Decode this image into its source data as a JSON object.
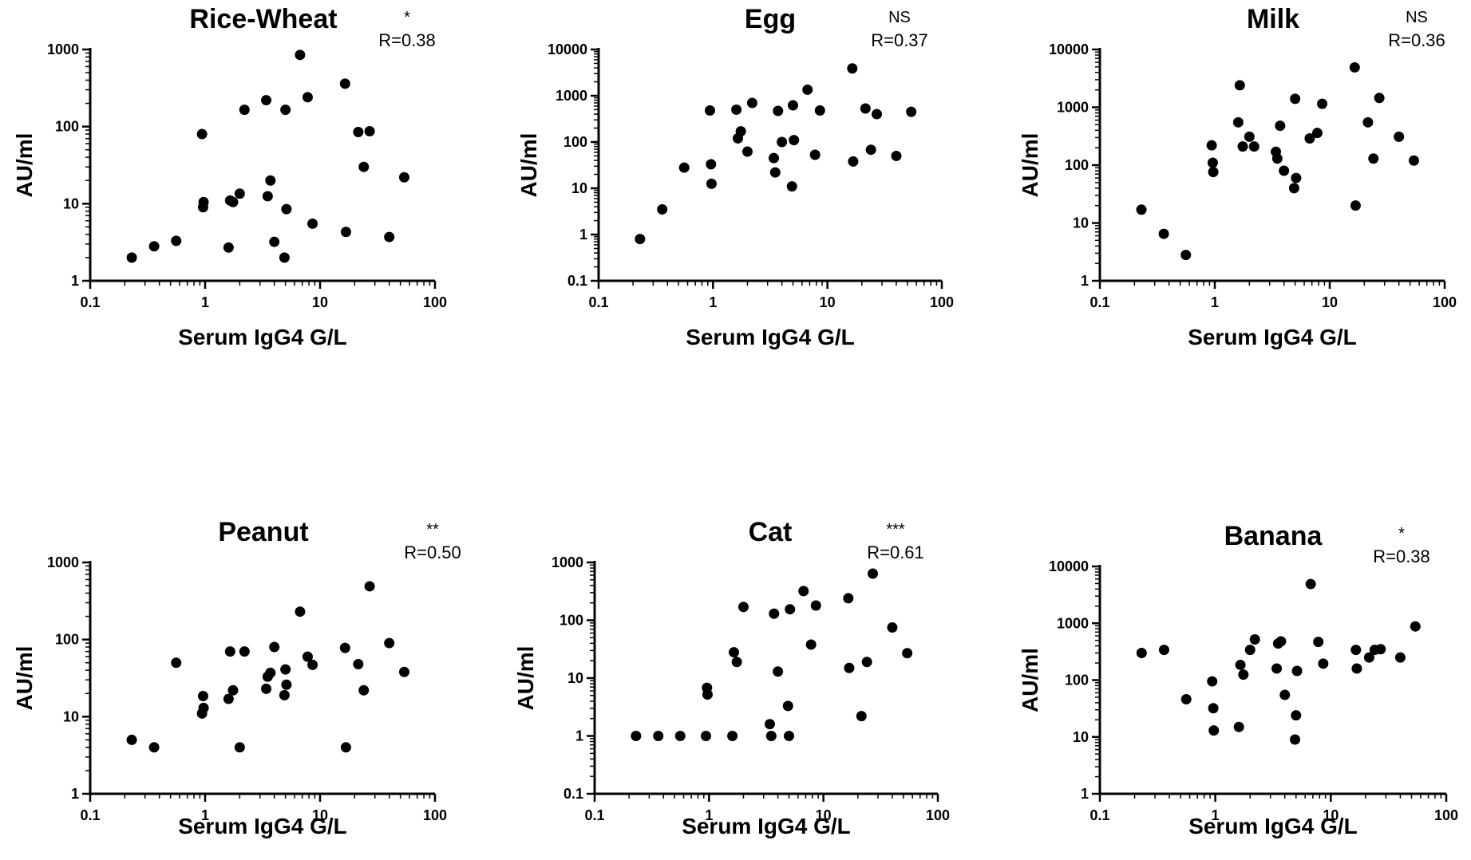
{
  "chart_data": [
    {
      "type": "scatter",
      "title": "Rice-Wheat",
      "significance": "*",
      "correlation": "R=0.38",
      "xlabel": "Serum IgG4 G/L",
      "ylabel": "AU/ml",
      "x_scale": "log",
      "y_scale": "log",
      "xlim": [
        0.1,
        100
      ],
      "ylim": [
        1,
        1000
      ],
      "x_ticks": [
        "0.1",
        "1",
        "10",
        "100"
      ],
      "y_ticks": [
        "1",
        "10",
        "100",
        "1000"
      ],
      "grid": false,
      "points": [
        {
          "x": 0.23,
          "y": 2
        },
        {
          "x": 0.36,
          "y": 2.8
        },
        {
          "x": 0.56,
          "y": 3.3
        },
        {
          "x": 0.94,
          "y": 80
        },
        {
          "x": 0.96,
          "y": 9
        },
        {
          "x": 0.97,
          "y": 10.5
        },
        {
          "x": 1.6,
          "y": 2.7
        },
        {
          "x": 1.65,
          "y": 11
        },
        {
          "x": 1.75,
          "y": 10.5
        },
        {
          "x": 2.0,
          "y": 13.5
        },
        {
          "x": 2.2,
          "y": 165
        },
        {
          "x": 3.4,
          "y": 220
        },
        {
          "x": 3.5,
          "y": 12.5
        },
        {
          "x": 3.7,
          "y": 20
        },
        {
          "x": 4.0,
          "y": 3.2
        },
        {
          "x": 4.9,
          "y": 2
        },
        {
          "x": 5.0,
          "y": 165
        },
        {
          "x": 5.1,
          "y": 8.5
        },
        {
          "x": 6.7,
          "y": 850
        },
        {
          "x": 7.8,
          "y": 240
        },
        {
          "x": 8.6,
          "y": 5.5
        },
        {
          "x": 16.5,
          "y": 360
        },
        {
          "x": 16.8,
          "y": 4.3
        },
        {
          "x": 21.5,
          "y": 85
        },
        {
          "x": 24,
          "y": 30
        },
        {
          "x": 27,
          "y": 87
        },
        {
          "x": 40,
          "y": 3.7
        },
        {
          "x": 54,
          "y": 22
        }
      ]
    },
    {
      "type": "scatter",
      "title": "Egg",
      "significance": "NS",
      "correlation": "R=0.37",
      "xlabel": "Serum IgG4 G/L",
      "ylabel": "AU/ml",
      "x_scale": "log",
      "y_scale": "log",
      "xlim": [
        0.1,
        100
      ],
      "ylim": [
        0.1,
        10000
      ],
      "x_ticks": [
        "0.1",
        "1",
        "10",
        "100"
      ],
      "y_ticks": [
        "0.1",
        "1",
        "10",
        "100",
        "1000",
        "10000"
      ],
      "grid": false,
      "points": [
        {
          "x": 0.23,
          "y": 0.8
        },
        {
          "x": 0.36,
          "y": 3.5
        },
        {
          "x": 0.56,
          "y": 28
        },
        {
          "x": 0.94,
          "y": 480
        },
        {
          "x": 0.96,
          "y": 33
        },
        {
          "x": 0.97,
          "y": 12.5
        },
        {
          "x": 1.6,
          "y": 500
        },
        {
          "x": 1.65,
          "y": 120
        },
        {
          "x": 1.75,
          "y": 170
        },
        {
          "x": 2.0,
          "y": 62
        },
        {
          "x": 2.2,
          "y": 700
        },
        {
          "x": 3.4,
          "y": 45
        },
        {
          "x": 3.5,
          "y": 22
        },
        {
          "x": 3.7,
          "y": 470
        },
        {
          "x": 4.0,
          "y": 100
        },
        {
          "x": 4.9,
          "y": 11
        },
        {
          "x": 5.0,
          "y": 620
        },
        {
          "x": 5.1,
          "y": 110
        },
        {
          "x": 6.7,
          "y": 1350
        },
        {
          "x": 7.8,
          "y": 53
        },
        {
          "x": 8.6,
          "y": 480
        },
        {
          "x": 16.5,
          "y": 3900
        },
        {
          "x": 16.8,
          "y": 38
        },
        {
          "x": 21.5,
          "y": 530
        },
        {
          "x": 24,
          "y": 68
        },
        {
          "x": 27,
          "y": 400
        },
        {
          "x": 40,
          "y": 50
        },
        {
          "x": 54,
          "y": 450
        }
      ]
    },
    {
      "type": "scatter",
      "title": "Milk",
      "significance": "NS",
      "correlation": "R=0.36",
      "xlabel": "Serum IgG4 G/L",
      "ylabel": "AU/ml",
      "x_scale": "log",
      "y_scale": "log",
      "xlim": [
        0.1,
        100
      ],
      "ylim": [
        1,
        10000
      ],
      "x_ticks": [
        "0.1",
        "1",
        "10",
        "100"
      ],
      "y_ticks": [
        "1",
        "10",
        "100",
        "1000",
        "10000"
      ],
      "grid": false,
      "points": [
        {
          "x": 0.23,
          "y": 17
        },
        {
          "x": 0.36,
          "y": 6.5
        },
        {
          "x": 0.56,
          "y": 2.8
        },
        {
          "x": 0.94,
          "y": 220
        },
        {
          "x": 0.96,
          "y": 110
        },
        {
          "x": 0.97,
          "y": 76
        },
        {
          "x": 1.6,
          "y": 550
        },
        {
          "x": 1.65,
          "y": 2400
        },
        {
          "x": 1.75,
          "y": 210
        },
        {
          "x": 2.0,
          "y": 310
        },
        {
          "x": 2.2,
          "y": 210
        },
        {
          "x": 3.4,
          "y": 170
        },
        {
          "x": 3.5,
          "y": 130
        },
        {
          "x": 3.7,
          "y": 480
        },
        {
          "x": 4.0,
          "y": 80
        },
        {
          "x": 4.9,
          "y": 40
        },
        {
          "x": 5.0,
          "y": 1400
        },
        {
          "x": 5.1,
          "y": 60
        },
        {
          "x": 6.7,
          "y": 290
        },
        {
          "x": 7.8,
          "y": 360
        },
        {
          "x": 8.6,
          "y": 1150
        },
        {
          "x": 16.5,
          "y": 4900
        },
        {
          "x": 16.8,
          "y": 20
        },
        {
          "x": 21.5,
          "y": 550
        },
        {
          "x": 24,
          "y": 130
        },
        {
          "x": 27,
          "y": 1450
        },
        {
          "x": 40,
          "y": 310
        },
        {
          "x": 54,
          "y": 120
        }
      ]
    },
    {
      "type": "scatter",
      "title": "Peanut",
      "significance": "**",
      "correlation": "R=0.50",
      "xlabel": "Serum IgG4 G/L",
      "ylabel": "AU/ml",
      "x_scale": "log",
      "y_scale": "log",
      "xlim": [
        0.1,
        100
      ],
      "ylim": [
        1,
        1000
      ],
      "x_ticks": [
        "0.1",
        "1",
        "10",
        "100"
      ],
      "y_ticks": [
        "1",
        "10",
        "100",
        "1000"
      ],
      "grid": false,
      "points": [
        {
          "x": 0.23,
          "y": 5
        },
        {
          "x": 0.36,
          "y": 4
        },
        {
          "x": 0.56,
          "y": 50
        },
        {
          "x": 0.94,
          "y": 11
        },
        {
          "x": 0.96,
          "y": 18.5
        },
        {
          "x": 0.97,
          "y": 13
        },
        {
          "x": 1.6,
          "y": 17
        },
        {
          "x": 1.65,
          "y": 70
        },
        {
          "x": 1.75,
          "y": 22
        },
        {
          "x": 2.0,
          "y": 4
        },
        {
          "x": 2.2,
          "y": 70
        },
        {
          "x": 3.4,
          "y": 23
        },
        {
          "x": 3.5,
          "y": 33
        },
        {
          "x": 3.7,
          "y": 37
        },
        {
          "x": 4.0,
          "y": 80
        },
        {
          "x": 4.9,
          "y": 19
        },
        {
          "x": 5.0,
          "y": 41
        },
        {
          "x": 5.1,
          "y": 26
        },
        {
          "x": 6.7,
          "y": 230
        },
        {
          "x": 7.8,
          "y": 60
        },
        {
          "x": 8.6,
          "y": 47
        },
        {
          "x": 16.5,
          "y": 78
        },
        {
          "x": 16.8,
          "y": 4
        },
        {
          "x": 21.5,
          "y": 48
        },
        {
          "x": 24,
          "y": 22
        },
        {
          "x": 27,
          "y": 490
        },
        {
          "x": 40,
          "y": 90
        },
        {
          "x": 54,
          "y": 38
        }
      ]
    },
    {
      "type": "scatter",
      "title": "Cat",
      "significance": "***",
      "correlation": "R=0.61",
      "xlabel": "Serum IgG4 G/L",
      "ylabel": "AU/ml",
      "x_scale": "log",
      "y_scale": "log",
      "xlim": [
        0.1,
        100
      ],
      "ylim": [
        0.1,
        1000
      ],
      "x_ticks": [
        "0.1",
        "1",
        "10",
        "100"
      ],
      "y_ticks": [
        "0.1",
        "1",
        "10",
        "100",
        "1000"
      ],
      "grid": false,
      "points": [
        {
          "x": 0.23,
          "y": 1
        },
        {
          "x": 0.36,
          "y": 1
        },
        {
          "x": 0.56,
          "y": 1
        },
        {
          "x": 0.94,
          "y": 1
        },
        {
          "x": 0.96,
          "y": 6.8
        },
        {
          "x": 0.97,
          "y": 5.2
        },
        {
          "x": 1.6,
          "y": 1
        },
        {
          "x": 1.65,
          "y": 28
        },
        {
          "x": 1.75,
          "y": 19
        },
        {
          "x": 2.0,
          "y": 170
        },
        {
          "x": 3.4,
          "y": 1.6
        },
        {
          "x": 3.5,
          "y": 1
        },
        {
          "x": 3.7,
          "y": 130
        },
        {
          "x": 4.0,
          "y": 13
        },
        {
          "x": 4.9,
          "y": 3.3
        },
        {
          "x": 5.0,
          "y": 1
        },
        {
          "x": 5.1,
          "y": 155
        },
        {
          "x": 6.7,
          "y": 320
        },
        {
          "x": 7.8,
          "y": 38
        },
        {
          "x": 8.6,
          "y": 180
        },
        {
          "x": 16.5,
          "y": 240
        },
        {
          "x": 16.8,
          "y": 15
        },
        {
          "x": 21.5,
          "y": 2.2
        },
        {
          "x": 24,
          "y": 19
        },
        {
          "x": 27,
          "y": 640
        },
        {
          "x": 40,
          "y": 75
        },
        {
          "x": 54,
          "y": 27
        }
      ]
    },
    {
      "type": "scatter",
      "title": "Banana",
      "significance": "*",
      "correlation": "R=0.38",
      "xlabel": "Serum IgG4 G/L",
      "ylabel": "AU/ml",
      "x_scale": "log",
      "y_scale": "log",
      "xlim": [
        0.1,
        100
      ],
      "ylim": [
        1,
        10000
      ],
      "x_ticks": [
        "0.1",
        "1",
        "10",
        "100"
      ],
      "y_ticks": [
        "1",
        "10",
        "100",
        "1000",
        "10000"
      ],
      "grid": false,
      "points": [
        {
          "x": 0.23,
          "y": 300
        },
        {
          "x": 0.36,
          "y": 340
        },
        {
          "x": 0.56,
          "y": 46
        },
        {
          "x": 0.94,
          "y": 95
        },
        {
          "x": 0.96,
          "y": 32
        },
        {
          "x": 0.97,
          "y": 13
        },
        {
          "x": 1.6,
          "y": 15
        },
        {
          "x": 1.65,
          "y": 185
        },
        {
          "x": 1.75,
          "y": 125
        },
        {
          "x": 2.0,
          "y": 340
        },
        {
          "x": 2.2,
          "y": 520
        },
        {
          "x": 3.4,
          "y": 160
        },
        {
          "x": 3.5,
          "y": 440
        },
        {
          "x": 3.7,
          "y": 480
        },
        {
          "x": 4.0,
          "y": 55
        },
        {
          "x": 4.9,
          "y": 9
        },
        {
          "x": 5.0,
          "y": 24
        },
        {
          "x": 5.1,
          "y": 145
        },
        {
          "x": 6.7,
          "y": 4900
        },
        {
          "x": 7.8,
          "y": 470
        },
        {
          "x": 8.6,
          "y": 195
        },
        {
          "x": 16.5,
          "y": 340
        },
        {
          "x": 16.8,
          "y": 160
        },
        {
          "x": 21.5,
          "y": 250
        },
        {
          "x": 24,
          "y": 340
        },
        {
          "x": 27,
          "y": 350
        },
        {
          "x": 40,
          "y": 250
        },
        {
          "x": 54,
          "y": 880
        }
      ]
    }
  ]
}
